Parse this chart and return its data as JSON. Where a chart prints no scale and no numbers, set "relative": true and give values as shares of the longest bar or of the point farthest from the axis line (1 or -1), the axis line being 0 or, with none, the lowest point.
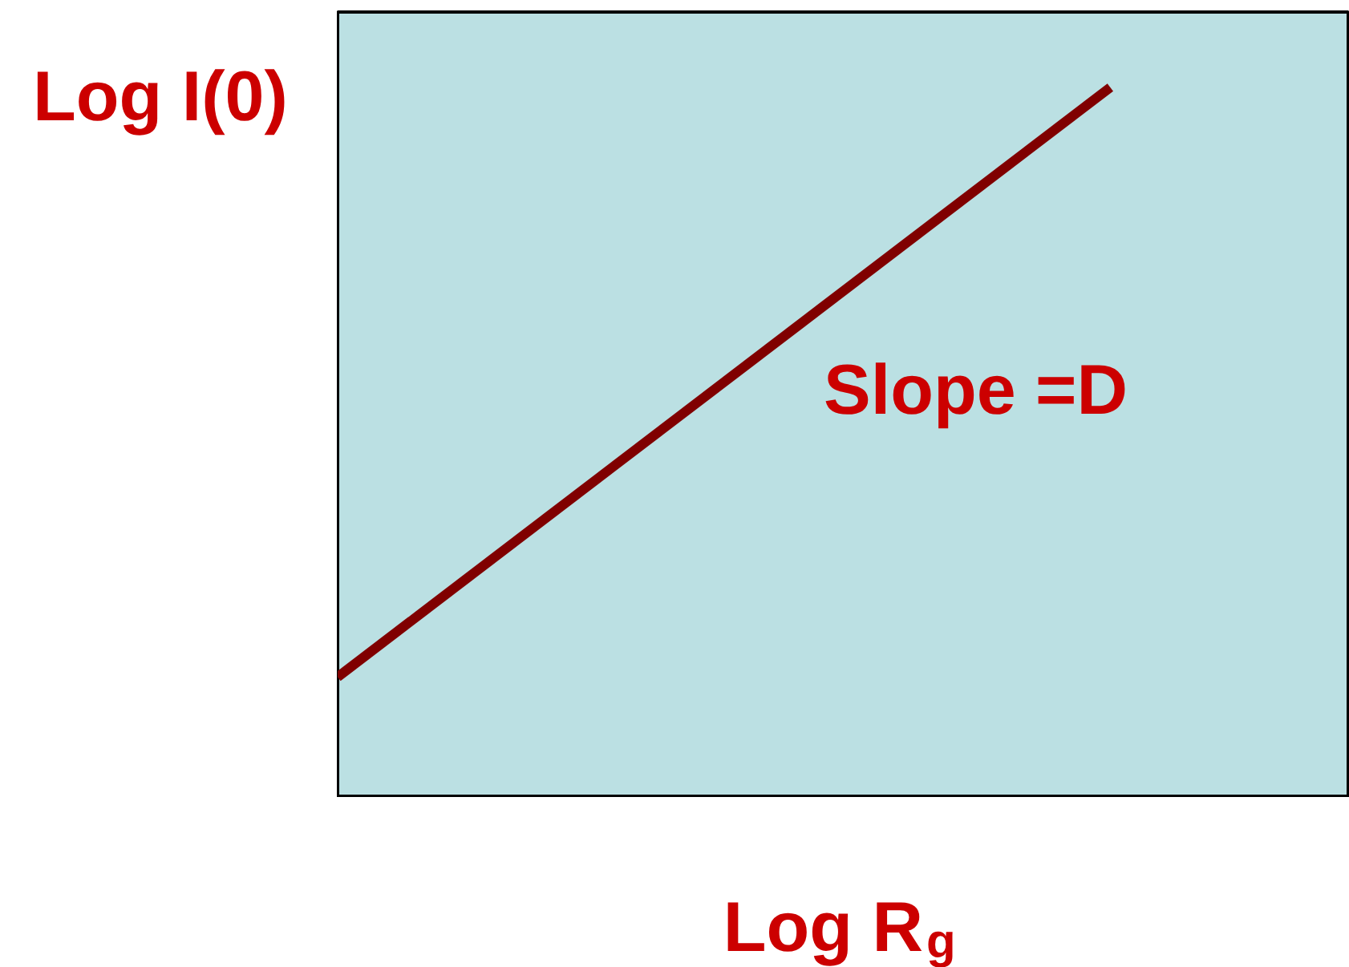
{
  "chart_data": {
    "type": "line",
    "relative": true,
    "categories": [
      null,
      null
    ],
    "series": [
      {
        "color": "#800000",
        "values": [
          0.17,
          1
        ]
      }
    ],
    "ylabel": "Log I(0)",
    "xlabel": "Log R$_{g}$",
    "annotations": [
      "Slope =D"
    ],
    "tick_labels": false,
    "line_style": "solid"
  }
}
